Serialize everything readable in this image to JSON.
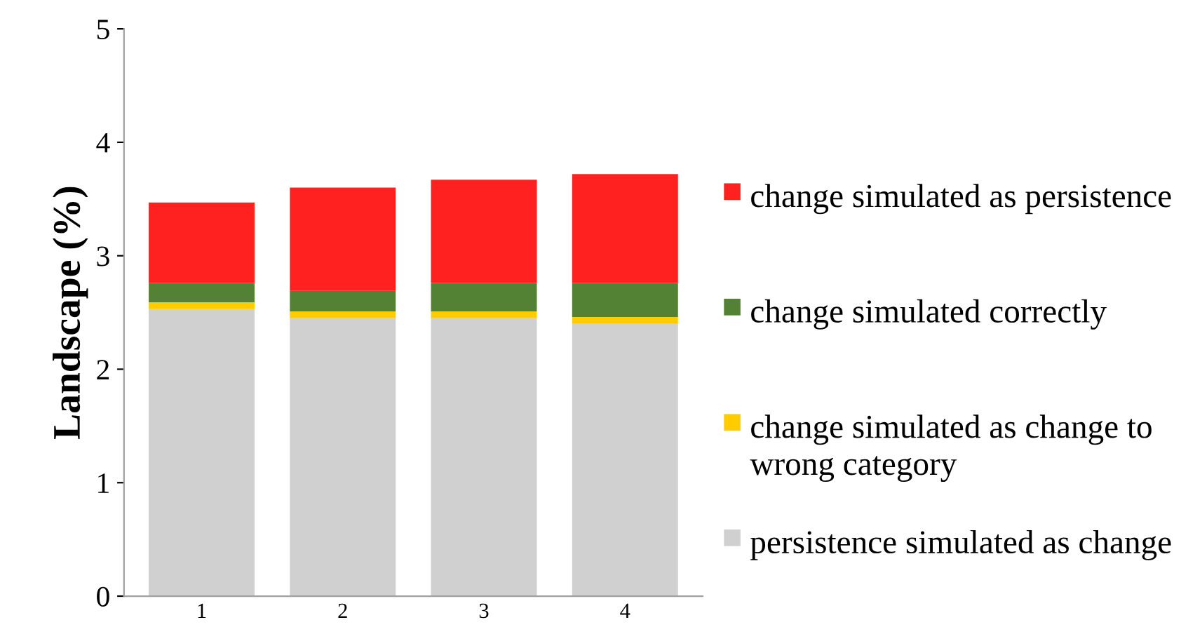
{
  "chart_data": {
    "type": "bar",
    "stacked": true,
    "ylabel": "Landscape (%)",
    "categories": [
      "1",
      "2",
      "3",
      "4"
    ],
    "ylim": [
      0,
      5
    ],
    "yticks": [
      0,
      1,
      2,
      3,
      4,
      5
    ],
    "grid": false,
    "legend": "right",
    "series": [
      {
        "name": "persistence simulated as change",
        "color": "#d0d0d0",
        "values": [
          2.53,
          2.45,
          2.45,
          2.4
        ]
      },
      {
        "name": "change simulated as change to wrong category",
        "color": "#ffcc00",
        "values": [
          0.06,
          0.06,
          0.06,
          0.06
        ]
      },
      {
        "name": "change simulated correctly",
        "color": "#548235",
        "values": [
          0.17,
          0.18,
          0.25,
          0.3
        ]
      },
      {
        "name": "change simulated as persistence",
        "color": "#ff2020",
        "values": [
          0.71,
          0.91,
          0.91,
          0.96
        ]
      }
    ]
  }
}
